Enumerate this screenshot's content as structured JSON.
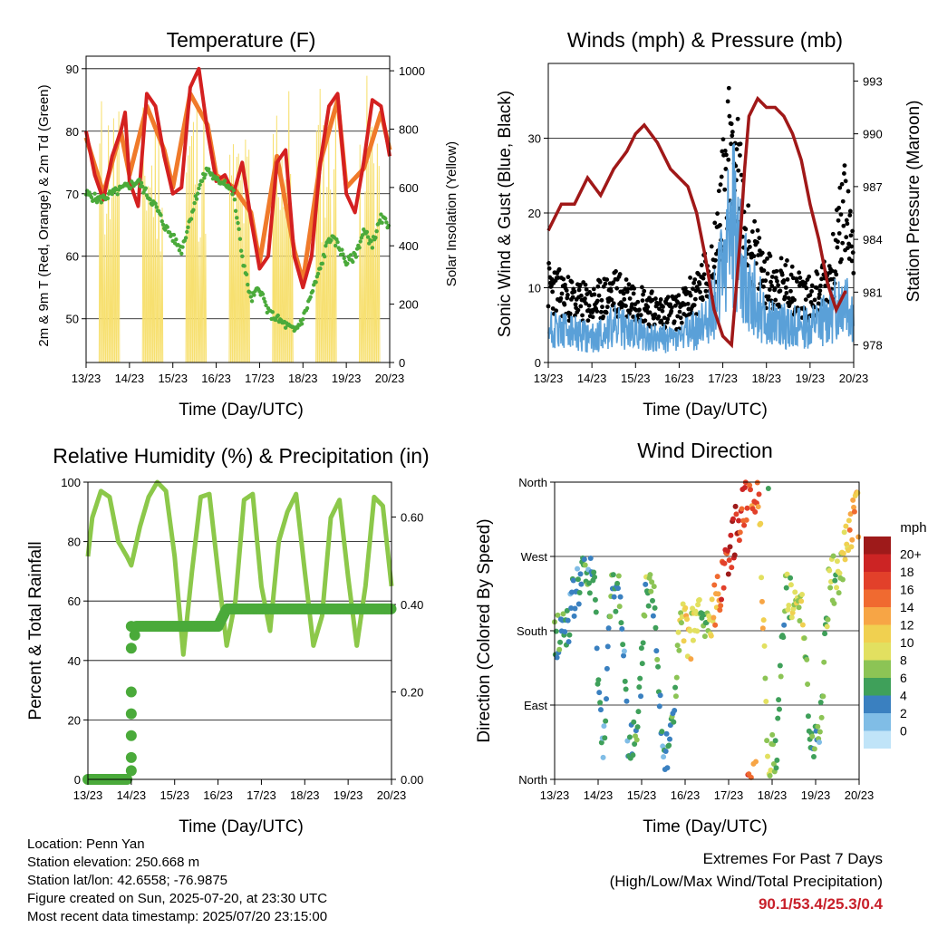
{
  "panels": {
    "temperature": {
      "title": "Temperature (F)",
      "ylabel": "2m & 9m T (Red, Orange) & 2m Td (Green)",
      "y2label": "Solar Insolation (Yellow)",
      "xlabel": "Time (Day/UTC)",
      "yticks": [
        "50",
        "60",
        "70",
        "80",
        "90"
      ],
      "y2ticks": [
        "0",
        "200",
        "400",
        "600",
        "800",
        "1000"
      ]
    },
    "winds": {
      "title": "Winds (mph) & Pressure (mb)",
      "ylabel": "Sonic Wind & Gust (Blue, Black)",
      "y2label": "Station Pressure (Maroon)",
      "xlabel": "Time (Day/UTC)",
      "yticks": [
        "0",
        "10",
        "20",
        "30"
      ],
      "y2ticks": [
        "978",
        "981",
        "984",
        "987",
        "990",
        "993"
      ]
    },
    "humidity": {
      "title": "Relative Humidity (%) & Precipitation (in)",
      "ylabel": "Percent & Total Rainfall",
      "xlabel": "Time (Day/UTC)",
      "yticks": [
        "0",
        "20",
        "40",
        "60",
        "80",
        "100"
      ],
      "y2ticks": [
        "0.00",
        "0.20",
        "0.40",
        "0.60"
      ]
    },
    "direction": {
      "title": "Wind Direction",
      "ylabel": "Direction (Colored By Speed)",
      "xlabel": "Time (Day/UTC)",
      "yticks": [
        "North",
        "East",
        "South",
        "West",
        "North"
      ],
      "legend_title": "mph",
      "legend_labels": [
        "20+",
        "18",
        "16",
        "14",
        "12",
        "10",
        "8",
        "6",
        "4",
        "2",
        "0"
      ],
      "legend_colors": [
        "#9e1a1a",
        "#cc2424",
        "#e2402a",
        "#f06a30",
        "#f7a545",
        "#f0d050",
        "#e2e060",
        "#8cc455",
        "#3fa05a",
        "#3a80c0",
        "#80bde6",
        "#c0e4f8"
      ]
    }
  },
  "xticks": [
    "13/23",
    "14/23",
    "15/23",
    "16/23",
    "17/23",
    "18/23",
    "19/23",
    "20/23"
  ],
  "footer": {
    "location": "Location: Penn Yan",
    "elevation": "Station elevation: 250.668 m",
    "latlon": "Station lat/lon: 42.6558; -76.9875",
    "created": "Figure created on Sun, 2025-07-20, at 23:30 UTC",
    "timestamp": "Most recent data timestamp: 2025/07/20 23:15:00",
    "extremes_title": "Extremes For Past 7 Days",
    "extremes_subtitle": "(High/Low/Max Wind/Total Precipitation)",
    "extremes_values": "90.1/53.4/25.3/0.4"
  },
  "colors": {
    "t2m": "#d42020",
    "t9m": "#f07a2a",
    "td": "#4aaa3a",
    "solar": "#f7e070",
    "wind": "#5aa0d8",
    "gust": "#000000",
    "pressure": "#a01818",
    "rh": "#8cc84a",
    "precip": "#4aaa3a"
  },
  "chart_data": [
    {
      "type": "line",
      "title": "Temperature (F)",
      "xlabel": "Time (Day/UTC)",
      "ylabel": "2m & 9m T (Red, Orange) & 2m Td (Green)",
      "y2label": "Solar Insolation (Yellow)",
      "ylim": [
        43,
        92
      ],
      "y2lim": [
        0,
        1050
      ],
      "xlim": [
        0,
        7
      ],
      "series": [
        {
          "name": "2m T",
          "x": [
            0,
            0.2,
            0.4,
            0.6,
            0.8,
            0.9,
            1.0,
            1.2,
            1.4,
            1.6,
            1.8,
            2.0,
            2.2,
            2.4,
            2.6,
            2.8,
            3.0,
            3.2,
            3.4,
            3.6,
            3.8,
            4.0,
            4.2,
            4.4,
            4.6,
            4.8,
            5.0,
            5.2,
            5.4,
            5.6,
            5.8,
            6.0,
            6.2,
            6.4,
            6.6,
            6.8,
            7.0
          ],
          "values": [
            80,
            73,
            69,
            76,
            80,
            83,
            72,
            68,
            86,
            84,
            76,
            70,
            71,
            87,
            90,
            80,
            72,
            73,
            70,
            75,
            66,
            58,
            60,
            75,
            77,
            60,
            55,
            60,
            75,
            84,
            86,
            70,
            67,
            75,
            85,
            84,
            76
          ]
        },
        {
          "name": "9m T",
          "x": [
            0,
            0.4,
            0.8,
            1.0,
            1.4,
            1.8,
            2.0,
            2.4,
            2.8,
            3.0,
            3.4,
            3.8,
            4.0,
            4.4,
            4.8,
            5.0,
            5.4,
            5.8,
            6.0,
            6.4,
            6.8,
            7.0
          ],
          "values": [
            79,
            70,
            80,
            73,
            84,
            77,
            71,
            86,
            81,
            73,
            71,
            67,
            59,
            76,
            61,
            56,
            75,
            85,
            71,
            74,
            83,
            77
          ]
        },
        {
          "name": "2m Td",
          "x": [
            0,
            0.3,
            0.6,
            0.9,
            1.2,
            1.4,
            1.6,
            1.8,
            2.0,
            2.2,
            2.4,
            2.6,
            2.8,
            3.0,
            3.2,
            3.4,
            3.6,
            3.8,
            4.0,
            4.2,
            4.4,
            4.6,
            4.8,
            5.0,
            5.2,
            5.4,
            5.6,
            5.8,
            6.0,
            6.2,
            6.4,
            6.6,
            6.8,
            7.0
          ],
          "values": [
            70,
            69,
            70,
            71,
            72,
            70,
            68,
            65,
            63,
            61,
            66,
            71,
            74,
            72,
            72,
            70,
            60,
            53,
            55,
            51,
            50,
            49,
            48,
            50,
            54,
            58,
            63,
            62,
            59,
            60,
            64,
            62,
            66,
            65
          ]
        },
        {
          "name": "Solar Insolation",
          "x": [
            0.25,
            0.5,
            0.75,
            1.25,
            1.5,
            1.75,
            2.25,
            2.5,
            2.75,
            3.25,
            3.5,
            3.75,
            4.25,
            4.5,
            4.75,
            5.25,
            5.5,
            5.75,
            6.25,
            6.5,
            6.75
          ],
          "values": [
            0,
            950,
            0,
            0,
            900,
            0,
            0,
            980,
            0,
            0,
            820,
            0,
            0,
            1000,
            0,
            0,
            980,
            0,
            0,
            1000,
            0
          ]
        }
      ]
    },
    {
      "type": "scatter",
      "title": "Winds (mph) & Pressure (mb)",
      "xlabel": "Time (Day/UTC)",
      "ylabel": "Sonic Wind & Gust (Blue, Black)",
      "y2label": "Station Pressure (Maroon)",
      "ylim": [
        0,
        40
      ],
      "y2lim": [
        977,
        994
      ],
      "xlim": [
        0,
        7
      ],
      "series": [
        {
          "name": "Sonic Wind",
          "x": [
            0,
            0.5,
            1.0,
            1.5,
            2.0,
            2.5,
            3.0,
            3.5,
            3.8,
            4.0,
            4.2,
            4.5,
            5.0,
            5.5,
            6.0,
            6.5,
            6.8,
            7.0
          ],
          "values": [
            6,
            5,
            4,
            6,
            5,
            4,
            4,
            6,
            10,
            15,
            25,
            14,
            7,
            6,
            6,
            8,
            12,
            8
          ]
        },
        {
          "name": "Gust",
          "x": [
            0,
            0.5,
            1.0,
            1.5,
            2.0,
            2.5,
            3.0,
            3.5,
            3.8,
            4.0,
            4.2,
            4.5,
            5.0,
            5.5,
            6.0,
            6.5,
            6.8,
            7.0
          ],
          "values": [
            12,
            10,
            9,
            11,
            10,
            8,
            8,
            12,
            16,
            26,
            37,
            20,
            13,
            12,
            10,
            14,
            25,
            15
          ]
        },
        {
          "name": "Station Pressure",
          "x": [
            0,
            0.3,
            0.6,
            0.9,
            1.2,
            1.5,
            1.8,
            2.0,
            2.2,
            2.5,
            2.8,
            3.0,
            3.2,
            3.4,
            3.6,
            3.8,
            4.0,
            4.2,
            4.4,
            4.5,
            4.6,
            4.8,
            5.0,
            5.2,
            5.4,
            5.6,
            5.8,
            6.0,
            6.2,
            6.4,
            6.6,
            6.8
          ],
          "values": [
            984.5,
            986,
            986,
            987.5,
            986.5,
            988,
            989,
            990,
            990.5,
            989.5,
            988,
            987.5,
            987,
            985.5,
            983,
            980,
            978.5,
            978,
            984,
            988,
            991,
            992,
            991.5,
            991.5,
            991,
            990,
            988.5,
            986,
            984,
            981.5,
            980,
            981
          ]
        }
      ]
    },
    {
      "type": "line",
      "title": "Relative Humidity (%) & Precipitation (in)",
      "xlabel": "Time (Day/UTC)",
      "ylabel": "Percent & Total Rainfall",
      "ylim": [
        0,
        100
      ],
      "y2lim": [
        0,
        0.68
      ],
      "xlim": [
        0,
        7
      ],
      "series": [
        {
          "name": "Relative Humidity",
          "x": [
            0,
            0.1,
            0.3,
            0.5,
            0.7,
            0.9,
            1.0,
            1.2,
            1.4,
            1.6,
            1.8,
            2.0,
            2.2,
            2.4,
            2.6,
            2.8,
            3.0,
            3.2,
            3.4,
            3.6,
            3.8,
            4.0,
            4.2,
            4.4,
            4.6,
            4.8,
            5.0,
            5.2,
            5.4,
            5.6,
            5.8,
            6.0,
            6.2,
            6.4,
            6.6,
            6.8,
            7.0
          ],
          "values": [
            75,
            88,
            97,
            95,
            80,
            75,
            72,
            85,
            95,
            100,
            97,
            75,
            42,
            70,
            95,
            96,
            70,
            45,
            60,
            94,
            96,
            65,
            50,
            80,
            90,
            96,
            70,
            45,
            55,
            88,
            94,
            68,
            45,
            65,
            95,
            92,
            65
          ]
        },
        {
          "name": "Total Precipitation",
          "x": [
            0,
            0.5,
            0.95,
            1.0,
            1.05,
            1.1,
            1.5,
            2.0,
            2.5,
            3.0,
            3.2,
            3.5,
            4.0,
            5.0,
            6.0,
            7.0
          ],
          "values": [
            0,
            0,
            0,
            0.1,
            0.3,
            0.35,
            0.35,
            0.35,
            0.35,
            0.35,
            0.39,
            0.39,
            0.39,
            0.39,
            0.39,
            0.39
          ]
        }
      ]
    },
    {
      "type": "scatter",
      "title": "Wind Direction",
      "xlabel": "Time (Day/UTC)",
      "ylabel": "Direction (Colored By Speed)",
      "yticks": [
        "North",
        "East",
        "South",
        "West",
        "North"
      ],
      "ylim": [
        0,
        360
      ],
      "xlim": [
        0,
        7
      ],
      "series": [
        {
          "name": "Direction",
          "x": [
            0,
            0.3,
            0.5,
            0.7,
            0.9,
            1.1,
            1.3,
            1.5,
            1.7,
            1.9,
            2.1,
            2.3,
            2.5,
            2.7,
            2.9,
            3.1,
            3.3,
            3.5,
            3.7,
            3.9,
            4.1,
            4.3,
            4.5,
            4.7,
            4.9,
            5.1,
            5.3,
            5.5,
            5.7,
            5.9,
            6.1,
            6.3,
            6.5,
            6.7,
            6.9,
            7.0
          ],
          "values": [
            170,
            190,
            230,
            250,
            240,
            30,
            220,
            230,
            50,
            40,
            240,
            215,
            30,
            60,
            190,
            170,
            200,
            180,
            210,
            260,
            290,
            330,
            355,
            350,
            20,
            30,
            240,
            200,
            220,
            30,
            60,
            230,
            250,
            280,
            330,
            320
          ],
          "speeds": [
            6,
            5,
            4,
            5,
            6,
            4,
            6,
            5,
            4,
            5,
            7,
            6,
            4,
            5,
            10,
            12,
            8,
            6,
            14,
            18,
            20,
            19,
            17,
            15,
            8,
            6,
            7,
            9,
            10,
            6,
            5,
            9,
            8,
            12,
            14,
            13
          ]
        }
      ]
    }
  ]
}
